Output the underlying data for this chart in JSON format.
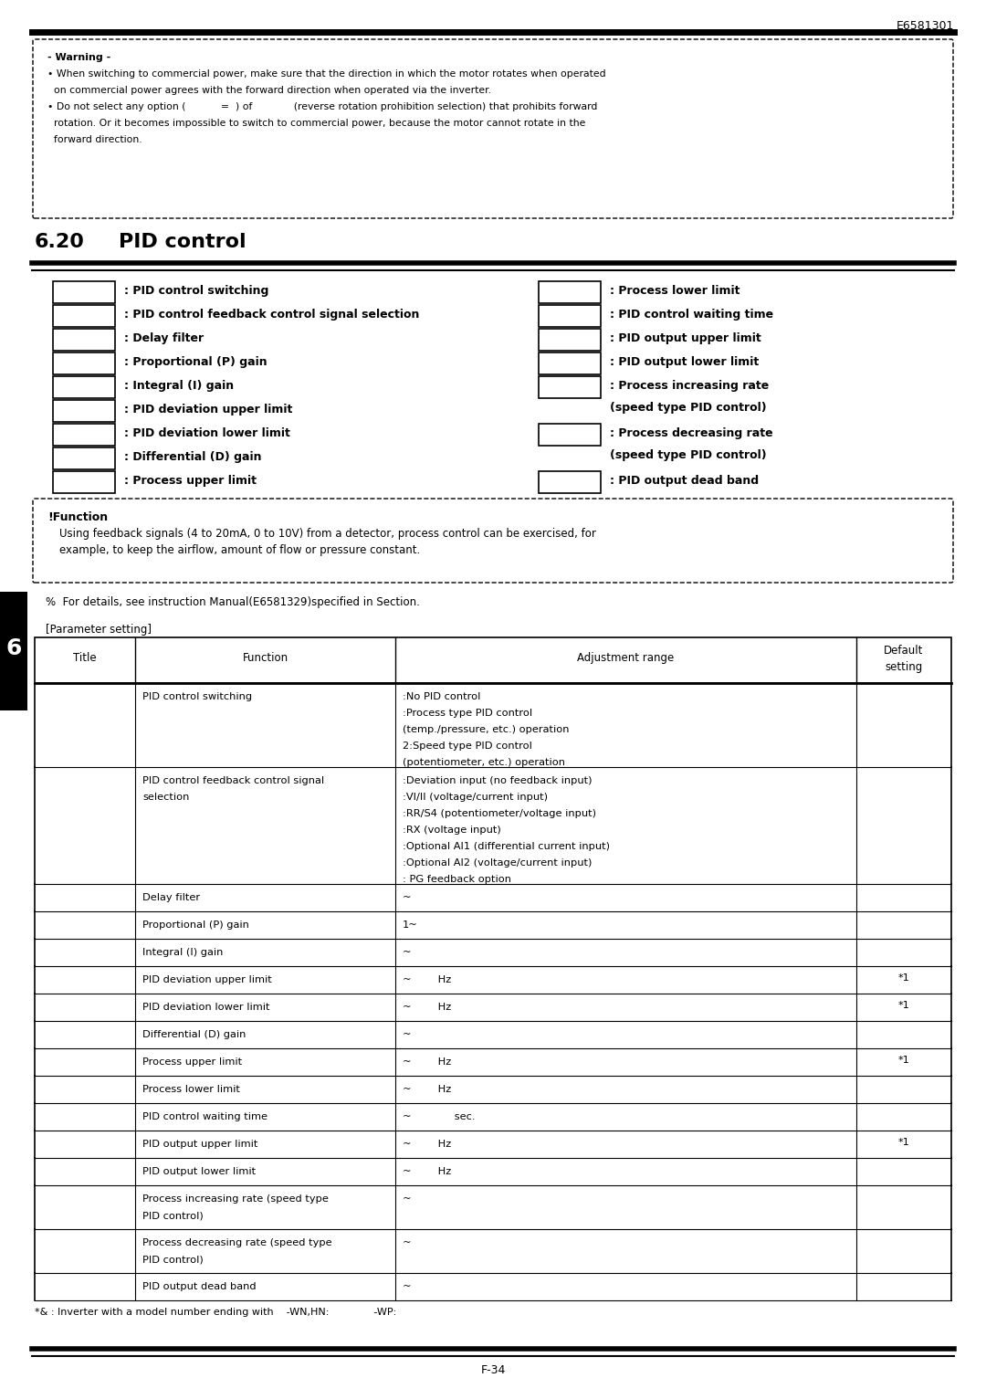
{
  "page_number": "E6581301",
  "footer_page": "F-34",
  "section_number": "6.20",
  "section_title": "PID control",
  "warning_title": "- Warning -",
  "warning_lines": [
    "• When switching to commercial power, make sure that the direction in which the motor rotates when operated",
    "  on commercial power agrees with the forward direction when operated via the inverter.",
    "• Do not select any option (           =  ) of             (reverse rotation prohibition selection) that prohibits forward",
    "  rotation. Or it becomes impossible to switch to commercial power, because the motor cannot rotate in the",
    "  forward direction."
  ],
  "left_items": [
    ": PID control switching",
    ": PID control feedback control signal selection",
    ": Delay filter",
    ": Proportional (P) gain",
    ": Integral (I) gain",
    ": PID deviation upper limit",
    ": PID deviation lower limit",
    ": Differential (D) gain",
    ": Process upper limit"
  ],
  "right_labels": [
    [
      ": Process lower limit",
      null
    ],
    [
      ": PID control waiting time",
      null
    ],
    [
      ": PID output upper limit",
      null
    ],
    [
      ": PID output lower limit",
      null
    ],
    [
      ": Process increasing rate",
      "(speed type PID control)"
    ],
    [
      ": Process decreasing rate",
      "(speed type PID control)"
    ],
    [
      ": PID output dead band",
      null
    ]
  ],
  "function_title": "!Function",
  "function_text_1": "Using feedback signals (4 to 20mA, 0 to 10V) from a detector, process control can be exercised, for",
  "function_text_2": "example, to keep the airflow, amount of flow or pressure constant.",
  "note_text": "%  For details, see instruction Manual(E6581329)specified in Section.",
  "param_label": "[Parameter setting]",
  "table_headers": [
    "Title",
    "Function",
    "Adjustment range",
    "Default\nsetting"
  ],
  "table_rows": [
    [
      "",
      "PID control switching",
      ":No PID control\n:Process type PID control\n(temp./pressure, etc.) operation\n2:Speed type PID control\n(potentiometer, etc.) operation",
      ""
    ],
    [
      "",
      "PID control feedback control signal\nselection",
      ":Deviation input (no feedback input)\n:VI/II (voltage/current input)\n:RR/S4 (potentiometer/voltage input)\n:RX (voltage input)\n:Optional AI1 (differential current input)\n:Optional AI2 (voltage/current input)\n: PG feedback option",
      ""
    ],
    [
      "",
      "Delay filter",
      "~",
      ""
    ],
    [
      "",
      "Proportional (P) gain",
      "1~",
      ""
    ],
    [
      "",
      "Integral (I) gain",
      "~",
      ""
    ],
    [
      "",
      "PID deviation upper limit",
      "~        Hz",
      "*1"
    ],
    [
      "",
      "PID deviation lower limit",
      "~        Hz",
      "*1"
    ],
    [
      "",
      "Differential (D) gain",
      "~",
      ""
    ],
    [
      "",
      "Process upper limit",
      "~        Hz",
      "*1"
    ],
    [
      "",
      "Process lower limit",
      "~        Hz",
      ""
    ],
    [
      "",
      "PID control waiting time",
      "~             sec.",
      ""
    ],
    [
      "",
      "PID output upper limit",
      "~        Hz",
      "*1"
    ],
    [
      "",
      "PID output lower limit",
      "~        Hz",
      ""
    ],
    [
      "",
      "Process increasing rate (speed type\nPID control)",
      "~",
      ""
    ],
    [
      "",
      "Process decreasing rate (speed type\nPID control)",
      "~",
      ""
    ],
    [
      "",
      "PID output dead band",
      "~",
      ""
    ]
  ],
  "footnote": "*& : Inverter with a model number ending with    -WN,HN:              -WP:",
  "chapter_num": "6",
  "bg_color": "#ffffff"
}
